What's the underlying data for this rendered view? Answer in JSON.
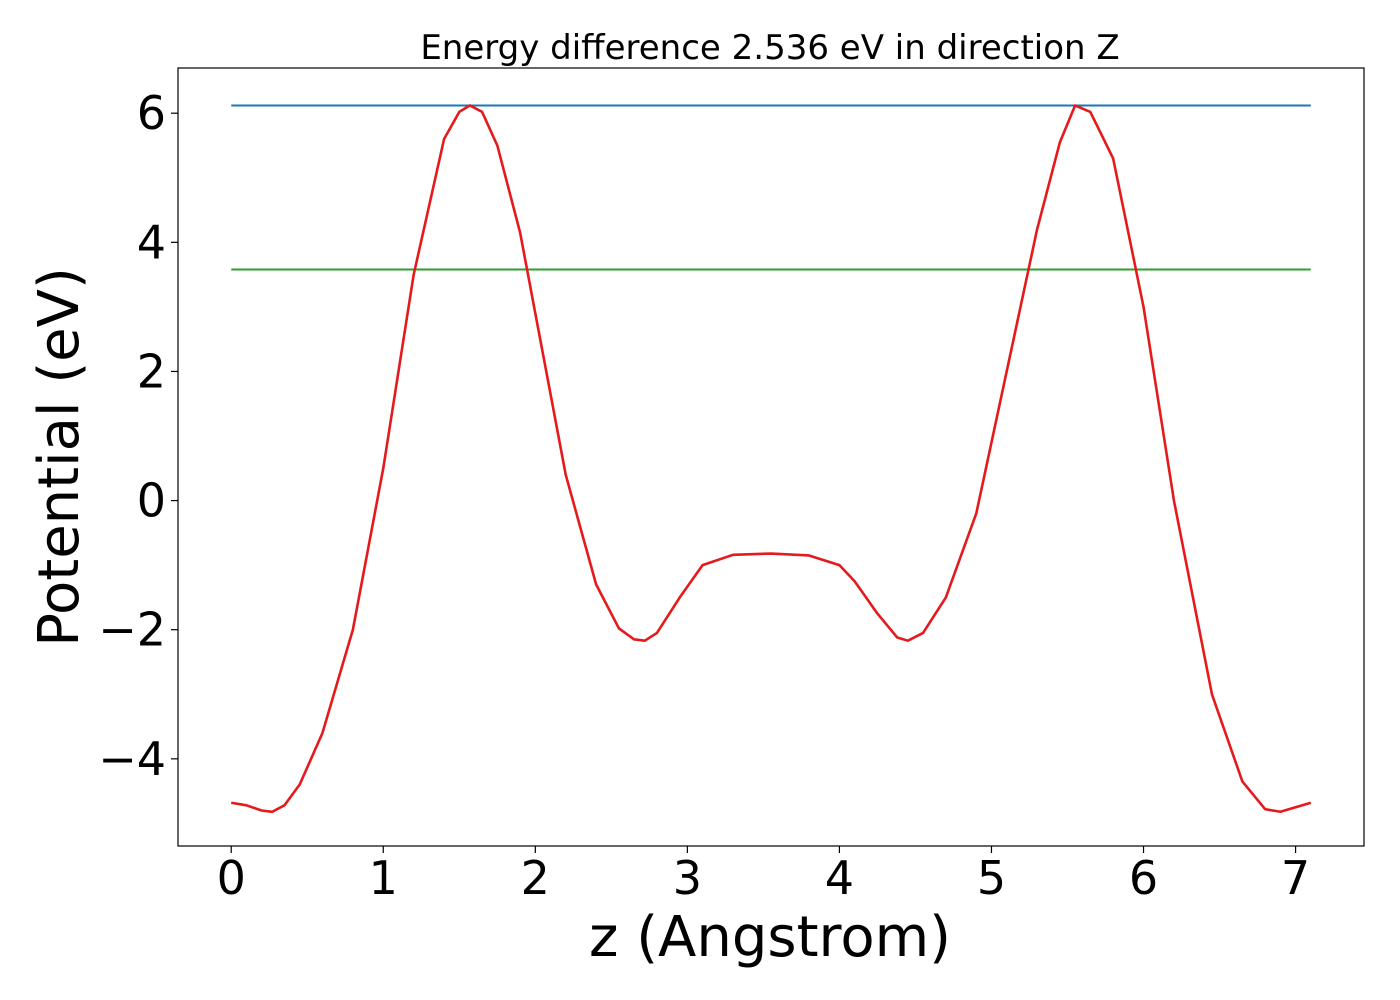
{
  "chart_data": {
    "type": "line",
    "title": "Energy difference 2.536 eV in direction Z",
    "xlabel": "z (Angstrom)",
    "ylabel": "Potential (eV)",
    "xlim": [
      -0.35,
      7.45
    ],
    "ylim": [
      -5.35,
      6.7
    ],
    "xticks": [
      0,
      1,
      2,
      3,
      4,
      5,
      6,
      7
    ],
    "yticks": [
      -4,
      -2,
      0,
      2,
      4,
      6
    ],
    "ytick_labels": [
      "−4",
      "−2",
      "0",
      "2",
      "4",
      "6"
    ],
    "grid": false,
    "legend": "none",
    "series": [
      {
        "color": "#1f77b4",
        "x": [
          0,
          7.1
        ],
        "y": [
          6.12,
          6.12
        ]
      },
      {
        "color": "#2ca02c",
        "x": [
          0,
          7.1
        ],
        "y": [
          3.58,
          3.58
        ]
      },
      {
        "color": "#e41a1c",
        "x": [
          0,
          0.1,
          0.2,
          0.27,
          0.35,
          0.45,
          0.6,
          0.8,
          1.0,
          1.2,
          1.4,
          1.5,
          1.57,
          1.65,
          1.75,
          1.9,
          2.0,
          2.2,
          2.4,
          2.55,
          2.65,
          2.72,
          2.8,
          2.95,
          3.1,
          3.3,
          3.55,
          3.8,
          4.0,
          4.1,
          4.25,
          4.38,
          4.45,
          4.55,
          4.7,
          4.9,
          5.1,
          5.3,
          5.45,
          5.55,
          5.65,
          5.8,
          6.0,
          6.2,
          6.45,
          6.65,
          6.8,
          6.9,
          7.0,
          7.1
        ],
        "y": [
          -4.68,
          -4.72,
          -4.8,
          -4.82,
          -4.72,
          -4.4,
          -3.6,
          -2.0,
          0.5,
          3.5,
          5.6,
          6.02,
          6.12,
          6.02,
          5.5,
          4.15,
          2.9,
          0.4,
          -1.3,
          -1.98,
          -2.15,
          -2.17,
          -2.05,
          -1.5,
          -1.0,
          -0.84,
          -0.82,
          -0.85,
          -1.0,
          -1.25,
          -1.75,
          -2.12,
          -2.17,
          -2.05,
          -1.5,
          -0.2,
          2.0,
          4.2,
          5.55,
          6.12,
          6.02,
          5.3,
          3.0,
          0.0,
          -3.0,
          -4.35,
          -4.78,
          -4.82,
          -4.75,
          -4.68
        ]
      }
    ]
  }
}
